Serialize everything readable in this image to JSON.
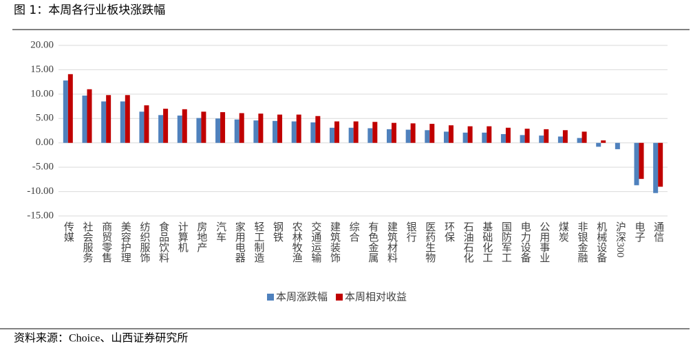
{
  "chart_data": {
    "type": "bar",
    "title": "图 1：本周各行业板块涨跌幅",
    "source": "资料来源：Choice、山西证券研究所",
    "categories": [
      "传媒",
      "社会服务",
      "商贸零售",
      "美容护理",
      "纺织服饰",
      "食品饮料",
      "计算机",
      "房地产",
      "汽车",
      "家用电器",
      "轻工制造",
      "钢铁",
      "农林牧渔",
      "交通运输",
      "建筑装饰",
      "综合",
      "有色金属",
      "建筑材料",
      "银行",
      "医药生物",
      "环保",
      "石油石化",
      "基础化工",
      "国防军工",
      "电力设备",
      "公用事业",
      "煤炭",
      "非银金融",
      "机械设备",
      "沪深300",
      "电子",
      "通信"
    ],
    "series": [
      {
        "name": "本周涨跌幅",
        "color": "#4f81bd",
        "values": [
          12.8,
          9.7,
          8.5,
          8.5,
          6.4,
          5.7,
          5.6,
          5.1,
          5.0,
          4.8,
          4.6,
          4.5,
          4.4,
          4.2,
          3.1,
          3.1,
          3.0,
          2.8,
          2.7,
          2.6,
          2.3,
          2.1,
          2.1,
          1.8,
          1.6,
          1.5,
          1.3,
          1.0,
          -0.8,
          -1.3,
          -8.7,
          -10.3
        ]
      },
      {
        "name": "本周相对收益",
        "color": "#c00000",
        "values": [
          14.1,
          11.0,
          9.8,
          9.8,
          7.7,
          7.0,
          6.9,
          6.4,
          6.3,
          6.1,
          6.0,
          5.8,
          5.8,
          5.5,
          4.4,
          4.4,
          4.3,
          4.1,
          4.0,
          3.9,
          3.6,
          3.4,
          3.4,
          3.1,
          2.9,
          2.8,
          2.6,
          2.3,
          0.5,
          0,
          -7.4,
          -9.0
        ]
      }
    ],
    "ylim": [
      -15,
      20
    ],
    "yticks": [
      {
        "value": -15,
        "label": "-15.00"
      },
      {
        "value": -10,
        "label": "-10.00"
      },
      {
        "value": -5,
        "label": "-5.00"
      },
      {
        "value": 0,
        "label": "0.00"
      },
      {
        "value": 5,
        "label": "5.00"
      },
      {
        "value": 10,
        "label": "10.00"
      },
      {
        "value": 15,
        "label": "15.00"
      },
      {
        "value": 20,
        "label": "20.00"
      }
    ],
    "grid": true
  }
}
